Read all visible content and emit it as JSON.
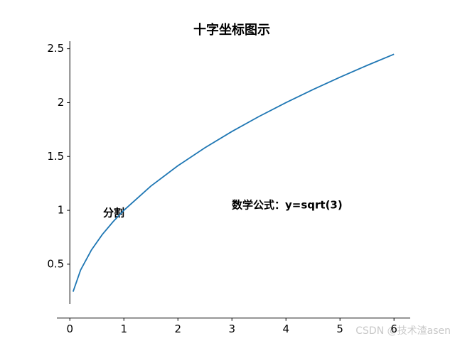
{
  "chart_data": {
    "type": "line",
    "title": "十字坐标图示",
    "x": [
      0.06,
      0.2,
      0.4,
      0.6,
      0.8,
      1,
      1.5,
      2,
      2.5,
      3,
      3.5,
      4,
      4.5,
      5,
      5.5,
      6
    ],
    "values": [
      0.245,
      0.447,
      0.632,
      0.775,
      0.894,
      1,
      1.225,
      1.414,
      1.581,
      1.732,
      1.871,
      2,
      2.121,
      2.236,
      2.345,
      2.449
    ],
    "color": "#1f77b4",
    "xlim": [
      -0.24,
      6.3
    ],
    "xticks": [
      0,
      1,
      2,
      3,
      4,
      5,
      6
    ],
    "ylim": [
      0.13,
      2.57
    ],
    "yticks": [
      0.5,
      1.0,
      1.5,
      2.0,
      2.5
    ],
    "annotations": [
      "分割",
      "数学公式：y=sqrt(3)"
    ],
    "watermark": "CSDN @技术渣asen"
  }
}
